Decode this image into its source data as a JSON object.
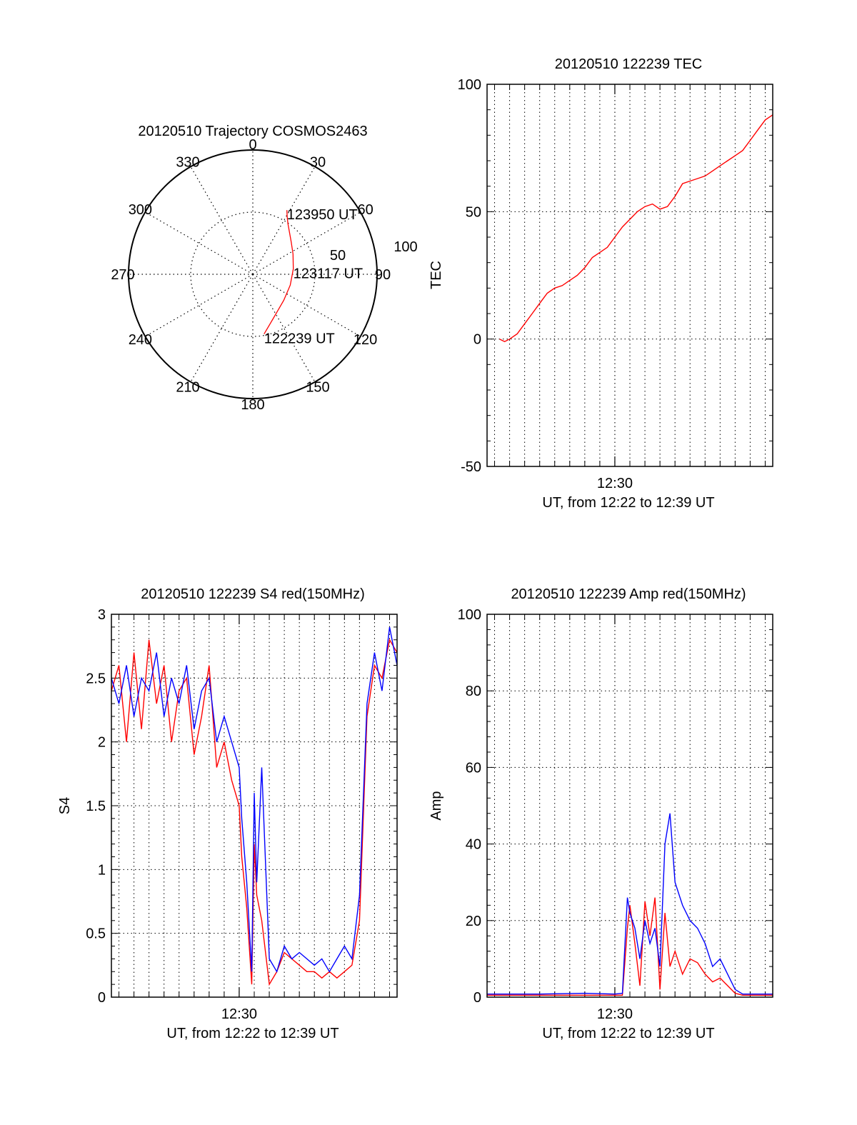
{
  "chart_data": [
    {
      "id": "trajectory",
      "type": "polar",
      "title": "20120510 Trajectory COSMOS2463",
      "azimuth_labels": [
        {
          "az": 0,
          "label": "0"
        },
        {
          "az": 30,
          "label": "30"
        },
        {
          "az": 60,
          "label": "60"
        },
        {
          "az": 90,
          "label": "90"
        },
        {
          "az": 120,
          "label": "120"
        },
        {
          "az": 150,
          "label": "150"
        },
        {
          "az": 180,
          "label": "180"
        },
        {
          "az": 210,
          "label": "210"
        },
        {
          "az": 240,
          "label": "240"
        },
        {
          "az": 270,
          "label": "270"
        },
        {
          "az": 300,
          "label": "300"
        },
        {
          "az": 330,
          "label": "330"
        }
      ],
      "radial_labels": [
        "50",
        "100"
      ],
      "radial_max": 100,
      "grid": true,
      "series_color": "#ff0000",
      "trajectory": {
        "az": [
          169.3,
          161.0,
          148.4,
          130.1,
          106.2,
          82.4,
          63.3,
          50.1,
          41.0,
          34.8,
          30.8,
          28.0
        ],
        "r": [
          97.8,
          84.7,
          72.8,
          65.1,
          62.7,
          65.7,
          72.4,
          80.6,
          89.9,
          99.0,
          108.0,
          116.9
        ]
      },
      "annotations": [
        {
          "text": "123950 UT",
          "az": 28.0,
          "r": 116.9
        },
        {
          "text": "123117 UT",
          "az": 82.4,
          "r": 65.7
        },
        {
          "text": "122239 UT",
          "az": 169.3,
          "r": 97.8
        }
      ]
    },
    {
      "id": "tec",
      "type": "line",
      "title": "20120510 122239 TEC",
      "xlabel": "UT, from 12:22 to 12:39 UT",
      "ylabel": "TEC",
      "xlim": [
        "12:21:30",
        "12:40:30"
      ],
      "ylim": [
        -50,
        100
      ],
      "yticks": [
        -50,
        0,
        50,
        100
      ],
      "xticks": [
        {
          "t": "12:30:00",
          "label": "12:30"
        }
      ],
      "x_minor_grid_step_min": 1,
      "grid": true,
      "series": [
        {
          "color": "#ff0000",
          "x": [
            "12:22:20",
            "12:22:40",
            "12:23:00",
            "12:23:30",
            "12:24:00",
            "12:24:30",
            "12:25:00",
            "12:25:30",
            "12:26:00",
            "12:26:30",
            "12:27:00",
            "12:27:30",
            "12:28:00",
            "12:28:30",
            "12:29:00",
            "12:29:30",
            "12:30:00",
            "12:30:30",
            "12:31:00",
            "12:31:30",
            "12:32:00",
            "12:32:30",
            "12:33:00",
            "12:33:30",
            "12:34:00",
            "12:34:30",
            "12:35:00",
            "12:35:30",
            "12:36:00",
            "12:36:30",
            "12:37:00",
            "12:37:30",
            "12:38:00",
            "12:38:30",
            "12:39:00",
            "12:39:30",
            "12:40:00",
            "12:40:30"
          ],
          "y": [
            0,
            -1,
            0,
            2,
            6,
            10,
            14,
            18,
            20,
            21,
            23,
            25,
            28,
            32,
            34,
            36,
            40,
            44,
            47,
            50,
            52,
            53,
            51,
            52,
            56,
            61,
            62,
            63,
            64,
            66,
            68,
            70,
            72,
            74,
            78,
            82,
            86,
            88
          ]
        }
      ]
    },
    {
      "id": "s4",
      "type": "line",
      "title": "20120510 122239 S4 red(150MHz)",
      "xlabel": "UT, from 12:22 to 12:39 UT",
      "ylabel": "S4",
      "xlim": [
        "12:21:30",
        "12:40:30"
      ],
      "ylim": [
        0,
        3
      ],
      "yticks": [
        0,
        0.5,
        1,
        1.5,
        2,
        2.5,
        3
      ],
      "ytick_labels": [
        "0",
        "0.5",
        "1",
        "1.5",
        "2",
        "2.5",
        "3"
      ],
      "xticks": [
        {
          "t": "12:30:00",
          "label": "12:30"
        }
      ],
      "x_minor_grid_step_min": 1,
      "grid": true,
      "series": [
        {
          "color": "#ff0000",
          "x": [
            "12:21:30",
            "12:22:00",
            "12:22:30",
            "12:23:00",
            "12:23:30",
            "12:24:00",
            "12:24:30",
            "12:25:00",
            "12:25:30",
            "12:26:00",
            "12:26:30",
            "12:27:00",
            "12:27:30",
            "12:28:00",
            "12:28:30",
            "12:29:00",
            "12:29:30",
            "12:30:00",
            "12:30:10",
            "12:30:30",
            "12:30:50",
            "12:31:00",
            "12:31:10",
            "12:31:30",
            "12:32:00",
            "12:32:30",
            "12:33:00",
            "12:33:30",
            "12:34:00",
            "12:34:30",
            "12:35:00",
            "12:35:30",
            "12:36:00",
            "12:36:30",
            "12:37:00",
            "12:37:30",
            "12:38:00",
            "12:38:30",
            "12:39:00",
            "12:39:30",
            "12:40:00",
            "12:40:30"
          ],
          "y": [
            2.4,
            2.6,
            2.0,
            2.7,
            2.1,
            2.8,
            2.3,
            2.6,
            2.0,
            2.4,
            2.5,
            1.9,
            2.2,
            2.6,
            1.8,
            2.0,
            1.7,
            1.5,
            1.1,
            0.7,
            0.1,
            1.2,
            0.8,
            0.6,
            0.1,
            0.2,
            0.35,
            0.3,
            0.25,
            0.2,
            0.2,
            0.15,
            0.2,
            0.15,
            0.2,
            0.25,
            0.6,
            2.2,
            2.6,
            2.5,
            2.8,
            2.7
          ]
        },
        {
          "color": "#0000ff",
          "x": [
            "12:21:30",
            "12:22:00",
            "12:22:30",
            "12:23:00",
            "12:23:30",
            "12:24:00",
            "12:24:30",
            "12:25:00",
            "12:25:30",
            "12:26:00",
            "12:26:30",
            "12:27:00",
            "12:27:30",
            "12:28:00",
            "12:28:30",
            "12:29:00",
            "12:29:30",
            "12:30:00",
            "12:30:10",
            "12:30:30",
            "12:30:50",
            "12:31:00",
            "12:31:10",
            "12:31:30",
            "12:32:00",
            "12:32:30",
            "12:33:00",
            "12:33:30",
            "12:34:00",
            "12:34:30",
            "12:35:00",
            "12:35:30",
            "12:36:00",
            "12:36:30",
            "12:37:00",
            "12:37:30",
            "12:38:00",
            "12:38:30",
            "12:39:00",
            "12:39:30",
            "12:40:00",
            "12:40:30"
          ],
          "y": [
            2.5,
            2.3,
            2.6,
            2.2,
            2.5,
            2.4,
            2.7,
            2.2,
            2.5,
            2.3,
            2.6,
            2.1,
            2.4,
            2.5,
            2.0,
            2.2,
            2.0,
            1.8,
            1.4,
            0.9,
            0.2,
            1.6,
            0.9,
            1.8,
            0.3,
            0.2,
            0.4,
            0.3,
            0.35,
            0.3,
            0.25,
            0.3,
            0.2,
            0.3,
            0.4,
            0.3,
            0.8,
            2.3,
            2.7,
            2.4,
            2.9,
            2.6
          ]
        }
      ]
    },
    {
      "id": "amp",
      "type": "line",
      "title": "20120510 122239 Amp red(150MHz)",
      "xlabel": "UT, from 12:22 to 12:39 UT",
      "ylabel": "Amp",
      "xlim": [
        "12:21:30",
        "12:40:30"
      ],
      "ylim": [
        0,
        100
      ],
      "yticks": [
        0,
        20,
        40,
        60,
        80,
        100
      ],
      "xticks": [
        {
          "t": "12:30:00",
          "label": "12:30"
        }
      ],
      "x_minor_grid_step_min": 1,
      "grid": true,
      "series": [
        {
          "color": "#ff0000",
          "x": [
            "12:21:30",
            "12:25:00",
            "12:30:00",
            "12:30:30",
            "12:30:50",
            "12:31:00",
            "12:31:20",
            "12:31:40",
            "12:32:00",
            "12:32:20",
            "12:32:40",
            "12:33:00",
            "12:33:20",
            "12:33:40",
            "12:34:00",
            "12:34:30",
            "12:35:00",
            "12:35:30",
            "12:36:00",
            "12:36:30",
            "12:37:00",
            "12:37:30",
            "12:38:00",
            "12:38:30",
            "12:40:30"
          ],
          "y": [
            0.5,
            0.5,
            0.5,
            0.5,
            18,
            24,
            14,
            3,
            25,
            16,
            26,
            2,
            22,
            8,
            12,
            6,
            10,
            9,
            6,
            4,
            5,
            3,
            1,
            0.5,
            0.5
          ]
        },
        {
          "color": "#0000ff",
          "x": [
            "12:21:30",
            "12:25:00",
            "12:28:00",
            "12:30:00",
            "12:30:30",
            "12:30:50",
            "12:31:00",
            "12:31:20",
            "12:31:40",
            "12:32:00",
            "12:32:20",
            "12:32:40",
            "12:33:00",
            "12:33:20",
            "12:33:40",
            "12:34:00",
            "12:34:30",
            "12:35:00",
            "12:35:30",
            "12:36:00",
            "12:36:30",
            "12:37:00",
            "12:37:30",
            "12:38:00",
            "12:38:30",
            "12:40:30"
          ],
          "y": [
            0.8,
            0.8,
            1.0,
            0.8,
            1.0,
            26,
            22,
            18,
            10,
            20,
            14,
            18,
            8,
            40,
            48,
            30,
            24,
            20,
            18,
            14,
            8,
            10,
            6,
            2,
            0.8,
            0.8
          ]
        }
      ]
    }
  ]
}
